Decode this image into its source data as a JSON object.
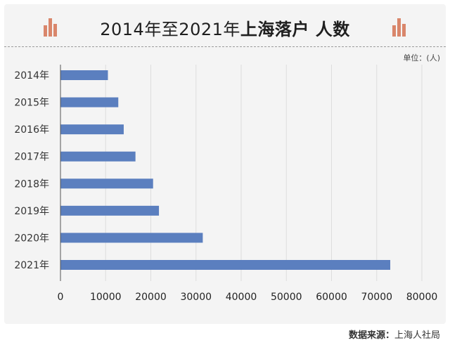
{
  "header": {
    "title_normal": "2014年至2021年",
    "title_bold": "上海落户 人数",
    "icon": "bar-chart-icon",
    "icon_color": "#d9866b"
  },
  "unit_label": "单位：(人)",
  "source": {
    "label": "数据来源：",
    "value": "上海人社局"
  },
  "colors": {
    "bar": "#5b7fbf",
    "background": "#f4f4f4",
    "grid": "#dddddd"
  },
  "chart_data": {
    "type": "bar",
    "orientation": "horizontal",
    "categories": [
      "2014年",
      "2015年",
      "2016年",
      "2017年",
      "2018年",
      "2019年",
      "2020年",
      "2021年"
    ],
    "values": [
      10500,
      12800,
      14000,
      16600,
      20500,
      21800,
      31500,
      73000
    ],
    "xlim": [
      0,
      80000
    ],
    "xticks": [
      "0",
      "10000",
      "20000",
      "30000",
      "40000",
      "50000",
      "60000",
      "70000",
      "80000"
    ],
    "grid": true,
    "legend": false
  }
}
